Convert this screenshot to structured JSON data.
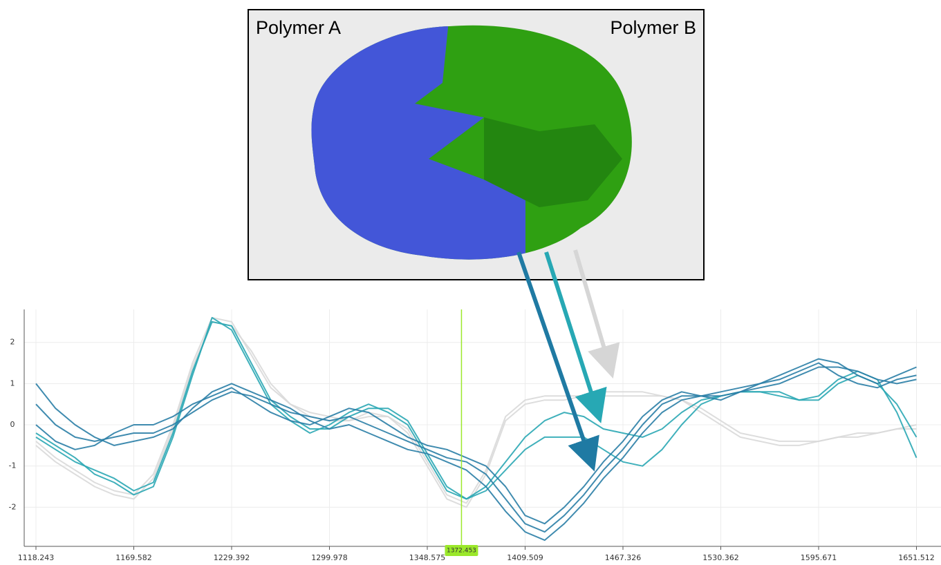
{
  "chart_data": {
    "type": "line",
    "annotations": [
      "Polymer A",
      "Polymer B"
    ],
    "categories": [
      "1118.243",
      null,
      null,
      null,
      null,
      "1169.582",
      null,
      null,
      null,
      null,
      "1229.392",
      null,
      null,
      null,
      null,
      "1299.978",
      null,
      null,
      null,
      null,
      "1348.575",
      null,
      null,
      null,
      null,
      "1409.509",
      null,
      null,
      null,
      null,
      "1467.326",
      null,
      null,
      null,
      null,
      "1530.362",
      null,
      null,
      null,
      null,
      "1595.671",
      null,
      null,
      null,
      null,
      "1651.512"
    ],
    "cursor": 1372.453,
    "ylim": [
      -2.95,
      2.8
    ],
    "yticks": [
      -2,
      -1,
      0,
      1,
      2
    ],
    "grid": true,
    "series": [
      {
        "color": "#d9d9d9",
        "values": [
          -0.5,
          -0.9,
          -1.2,
          -1.5,
          -1.7,
          -1.8,
          -1.3,
          -0.1,
          1.4,
          2.5,
          2.4,
          1.8,
          1.0,
          0.5,
          0.2,
          0.1,
          0.1,
          0.2,
          0.2,
          -0.2,
          -1.0,
          -1.8,
          -2.0,
          -1.2,
          0.1,
          0.5,
          0.6,
          0.6,
          0.7,
          0.7,
          0.7,
          0.7,
          0.7,
          0.6,
          0.4,
          0.1,
          -0.2,
          -0.3,
          -0.4,
          -0.4,
          -0.4,
          -0.3,
          -0.2,
          -0.2,
          -0.1,
          -0.1
        ]
      },
      {
        "color": "#d9d9d9",
        "values": [
          -0.4,
          -0.8,
          -1.1,
          -1.4,
          -1.6,
          -1.7,
          -1.2,
          0.0,
          1.5,
          2.6,
          2.5,
          1.7,
          0.9,
          0.5,
          0.3,
          0.2,
          0.1,
          0.3,
          0.2,
          -0.1,
          -0.9,
          -1.7,
          -1.9,
          -1.1,
          0.2,
          0.6,
          0.7,
          0.7,
          0.7,
          0.8,
          0.8,
          0.8,
          0.7,
          0.6,
          0.3,
          0.0,
          -0.3,
          -0.4,
          -0.5,
          -0.5,
          -0.4,
          -0.3,
          -0.3,
          -0.2,
          -0.1,
          0.0
        ]
      },
      {
        "color": "#2aa7b4",
        "values": [
          -0.3,
          -0.6,
          -0.9,
          -1.1,
          -1.3,
          -1.6,
          -1.4,
          -0.2,
          1.3,
          2.5,
          2.4,
          1.5,
          0.6,
          0.2,
          -0.1,
          -0.1,
          0.2,
          0.4,
          0.4,
          0.1,
          -0.7,
          -1.5,
          -1.8,
          -1.5,
          -0.9,
          -0.3,
          0.1,
          0.3,
          0.2,
          -0.1,
          -0.2,
          -0.3,
          -0.1,
          0.3,
          0.6,
          0.7,
          0.8,
          0.8,
          0.8,
          0.6,
          0.6,
          1.0,
          1.2,
          1.0,
          0.5,
          -0.3
        ]
      },
      {
        "color": "#2aa7b4",
        "values": [
          -0.2,
          -0.5,
          -0.8,
          -1.2,
          -1.4,
          -1.7,
          -1.5,
          -0.3,
          1.2,
          2.6,
          2.3,
          1.4,
          0.5,
          0.1,
          -0.2,
          0.0,
          0.3,
          0.5,
          0.3,
          0.0,
          -0.8,
          -1.6,
          -1.8,
          -1.6,
          -1.1,
          -0.6,
          -0.3,
          -0.3,
          -0.3,
          -0.6,
          -0.9,
          -1.0,
          -0.6,
          0.0,
          0.5,
          0.7,
          0.8,
          0.8,
          0.7,
          0.6,
          0.7,
          1.1,
          1.3,
          1.1,
          0.3,
          -0.8
        ]
      },
      {
        "color": "#2a7ea6",
        "values": [
          0.5,
          0.0,
          -0.3,
          -0.4,
          -0.3,
          -0.2,
          -0.2,
          0.0,
          0.3,
          0.6,
          0.8,
          0.7,
          0.5,
          0.3,
          0.2,
          0.1,
          0.2,
          0.0,
          -0.2,
          -0.4,
          -0.6,
          -0.8,
          -0.9,
          -1.2,
          -1.8,
          -2.4,
          -2.6,
          -2.2,
          -1.7,
          -1.1,
          -0.6,
          0.0,
          0.5,
          0.7,
          0.7,
          0.7,
          0.8,
          0.9,
          1.0,
          1.2,
          1.4,
          1.4,
          1.3,
          1.1,
          1.0,
          1.1
        ]
      },
      {
        "color": "#2a7ea6",
        "values": [
          1.0,
          0.4,
          0.0,
          -0.3,
          -0.5,
          -0.4,
          -0.3,
          -0.1,
          0.4,
          0.8,
          1.0,
          0.8,
          0.6,
          0.4,
          0.1,
          -0.1,
          0.0,
          -0.2,
          -0.4,
          -0.6,
          -0.7,
          -0.9,
          -1.1,
          -1.5,
          -2.1,
          -2.6,
          -2.8,
          -2.4,
          -1.9,
          -1.3,
          -0.8,
          -0.2,
          0.3,
          0.6,
          0.7,
          0.8,
          0.9,
          1.0,
          1.2,
          1.4,
          1.6,
          1.5,
          1.2,
          1.0,
          1.2,
          1.4
        ]
      },
      {
        "color": "#2a7ea6",
        "values": [
          0.0,
          -0.4,
          -0.6,
          -0.5,
          -0.2,
          0.0,
          0.0,
          0.2,
          0.5,
          0.7,
          0.9,
          0.6,
          0.3,
          0.1,
          0.0,
          0.2,
          0.4,
          0.3,
          0.0,
          -0.3,
          -0.5,
          -0.6,
          -0.8,
          -1.0,
          -1.5,
          -2.2,
          -2.4,
          -2.0,
          -1.5,
          -0.9,
          -0.4,
          0.2,
          0.6,
          0.8,
          0.7,
          0.6,
          0.8,
          1.0,
          1.1,
          1.3,
          1.5,
          1.2,
          1.0,
          0.9,
          1.1,
          1.2
        ]
      }
    ]
  }
}
